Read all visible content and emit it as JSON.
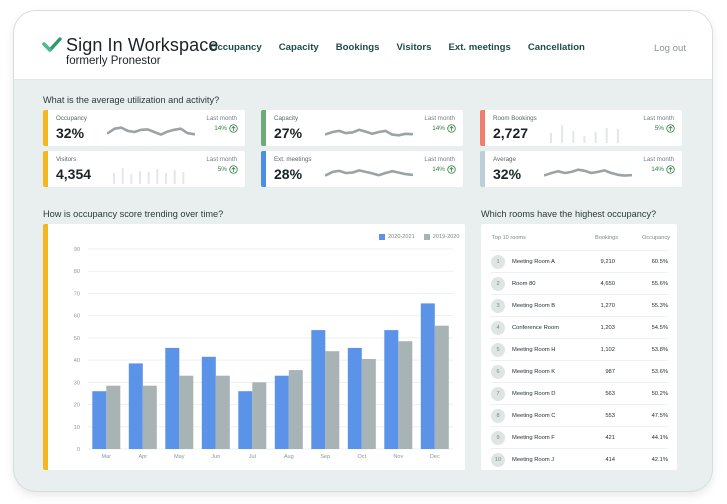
{
  "brand": {
    "name": "Sign In Workspace",
    "subtitle": "formerly Pronestor"
  },
  "nav": {
    "items": [
      {
        "label": "Occupancy"
      },
      {
        "label": "Capacity"
      },
      {
        "label": "Bookings"
      },
      {
        "label": "Visitors"
      },
      {
        "label": "Ext. meetings"
      },
      {
        "label": "Cancellation"
      }
    ],
    "logout": "Log out"
  },
  "utilization": {
    "title": "What is the average utilization and activity?",
    "kpis": [
      {
        "label": "Occupancy",
        "value": "32%",
        "period": "Last month",
        "change": "14%",
        "color": "#f3b81f",
        "spark": "line"
      },
      {
        "label": "Capacity",
        "value": "27%",
        "period": "Last month",
        "change": "14%",
        "color": "#6aab78",
        "spark": "line"
      },
      {
        "label": "Room Bookings",
        "value": "2,727",
        "period": "Last month",
        "change": "5%",
        "color": "#f07e6c",
        "spark": "bars"
      },
      {
        "label": "Visitors",
        "value": "4,354",
        "period": "Last month",
        "change": "5%",
        "color": "#f3b81f",
        "spark": "bars"
      },
      {
        "label": "Ext. meetings",
        "value": "28%",
        "period": "Last month",
        "change": "14%",
        "color": "#4c8ee6",
        "spark": "line"
      },
      {
        "label": "Average",
        "value": "32%",
        "period": "Last month",
        "change": "14%",
        "color": "#bccfd6",
        "spark": "line"
      }
    ]
  },
  "trend": {
    "title": "How is occupancy score trending over time?"
  },
  "chart_data": {
    "type": "bar",
    "categories": [
      "Mar",
      "Apr",
      "May",
      "Jun",
      "Jul",
      "Aug",
      "Sep",
      "Oct",
      "Nov",
      "Dec"
    ],
    "series": [
      {
        "name": "2020-2021",
        "color": "#5b93e8",
        "values": [
          26,
          38.5,
          45.5,
          41.5,
          26,
          33,
          53.5,
          45.5,
          53.5,
          65.5
        ]
      },
      {
        "name": "2019-2020",
        "color": "#a8b3b6",
        "values": [
          28.5,
          28.5,
          33,
          33,
          30,
          35.5,
          44,
          40.5,
          48.5,
          55.5
        ]
      }
    ],
    "ylim": [
      0,
      90
    ],
    "yticks": [
      "0",
      "10",
      "20",
      "30",
      "40",
      "50",
      "60",
      "70",
      "80",
      "90"
    ],
    "grid": true,
    "legend": "top-right"
  },
  "rooms": {
    "title": "Which rooms have the highest occupancy?",
    "headers": {
      "name": "Top 10 rooms",
      "bookings": "Bookings",
      "occupancy": "Occupancy"
    },
    "rows": [
      {
        "rank": "1",
        "name": "Meeting Room A",
        "bookings": "9,210",
        "occupancy": "60.5%"
      },
      {
        "rank": "2",
        "name": "Room 80",
        "bookings": "4,650",
        "occupancy": "55.6%"
      },
      {
        "rank": "3",
        "name": "Meeting Room B",
        "bookings": "1,270",
        "occupancy": "55.3%"
      },
      {
        "rank": "4",
        "name": "Conference Room",
        "bookings": "1,203",
        "occupancy": "54.5%"
      },
      {
        "rank": "5",
        "name": "Meeting Room H",
        "bookings": "1,102",
        "occupancy": "53.8%"
      },
      {
        "rank": "6",
        "name": "Meeting Room K",
        "bookings": "987",
        "occupancy": "53.6%"
      },
      {
        "rank": "7",
        "name": "Meeting Room D",
        "bookings": "563",
        "occupancy": "50.2%"
      },
      {
        "rank": "8",
        "name": "Meeting Room C",
        "bookings": "553",
        "occupancy": "47.5%"
      },
      {
        "rank": "9",
        "name": "Meeting Room F",
        "bookings": "421",
        "occupancy": "44.1%"
      },
      {
        "rank": "10",
        "name": "Meeting Room J",
        "bookings": "414",
        "occupancy": "42.1%"
      }
    ]
  }
}
